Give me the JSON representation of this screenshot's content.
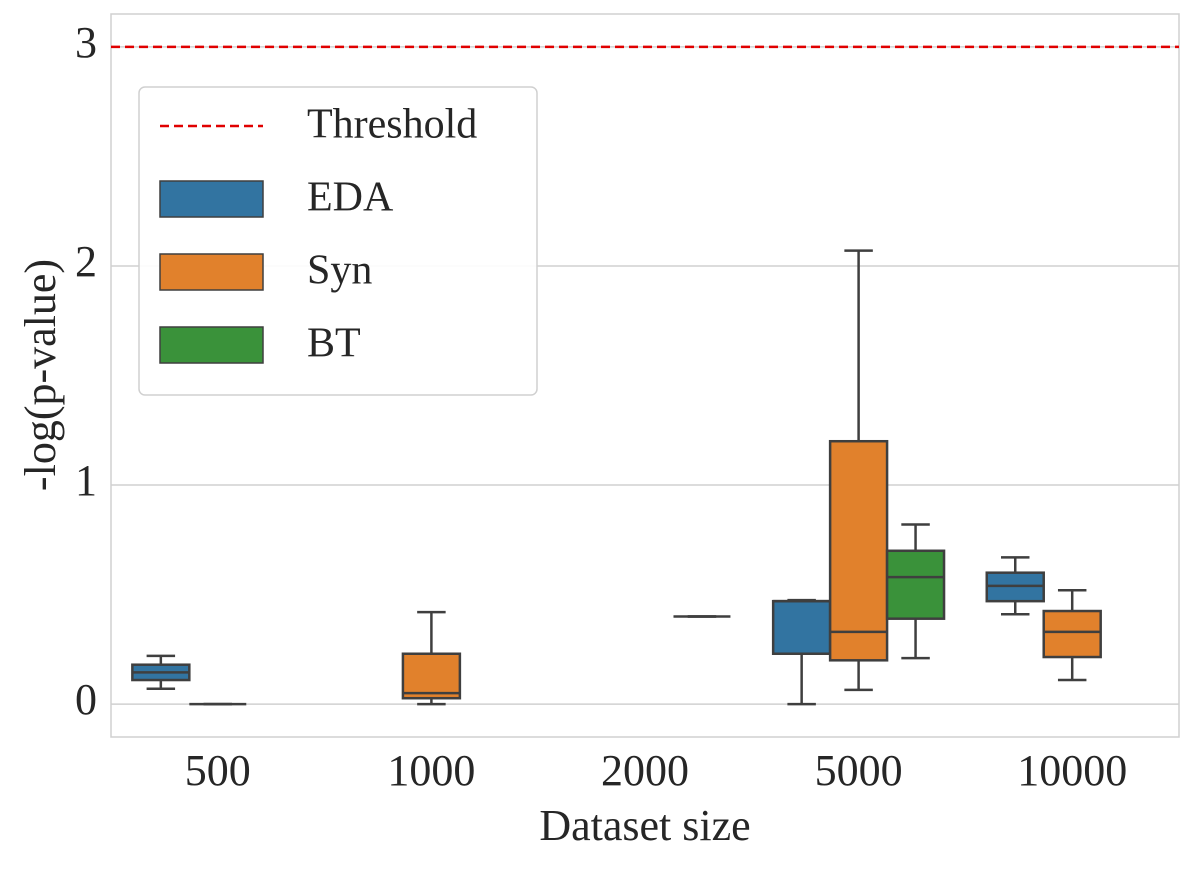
{
  "chart_data": {
    "type": "box",
    "xlabel": "Dataset size",
    "ylabel": "-log(p-value)",
    "categories": [
      "500",
      "1000",
      "2000",
      "5000",
      "10000"
    ],
    "ylim": [
      -0.15,
      3.15
    ],
    "yticks": [
      0,
      1,
      2,
      3
    ],
    "grid": true,
    "legend": "upper left",
    "threshold": {
      "name": "Threshold",
      "value": 3,
      "color": "#e00000"
    },
    "series": [
      {
        "name": "EDA",
        "color": "#3274a1",
        "values": [
          {
            "min": 0.07,
            "q1": 0.11,
            "median": 0.145,
            "q3": 0.18,
            "max": 0.22
          },
          null,
          null,
          {
            "min": 0,
            "q1": 0.23,
            "median": 0.47,
            "q3": 0.47,
            "max": 0.475
          },
          {
            "min": 0.41,
            "q1": 0.47,
            "median": 0.54,
            "q3": 0.6,
            "max": 0.67
          }
        ]
      },
      {
        "name": "Syn",
        "color": "#e1812c",
        "values": [
          {
            "min": 0,
            "q1": 0,
            "median": 0,
            "q3": 0,
            "max": 0
          },
          {
            "min": 0,
            "q1": 0.027,
            "median": 0.05,
            "q3": 0.23,
            "max": 0.42
          },
          null,
          {
            "min": 0.065,
            "q1": 0.2,
            "median": 0.33,
            "q3": 1.2,
            "max": 2.07
          },
          {
            "min": 0.11,
            "q1": 0.215,
            "median": 0.33,
            "q3": 0.425,
            "max": 0.52
          }
        ]
      },
      {
        "name": "BT",
        "color": "#3a923a",
        "values": [
          null,
          null,
          {
            "min": 0.4,
            "q1": 0.4,
            "median": 0.4,
            "q3": 0.4,
            "max": 0.4
          },
          {
            "min": 0.21,
            "q1": 0.39,
            "median": 0.58,
            "q3": 0.7,
            "max": 0.82
          },
          null
        ]
      }
    ]
  }
}
